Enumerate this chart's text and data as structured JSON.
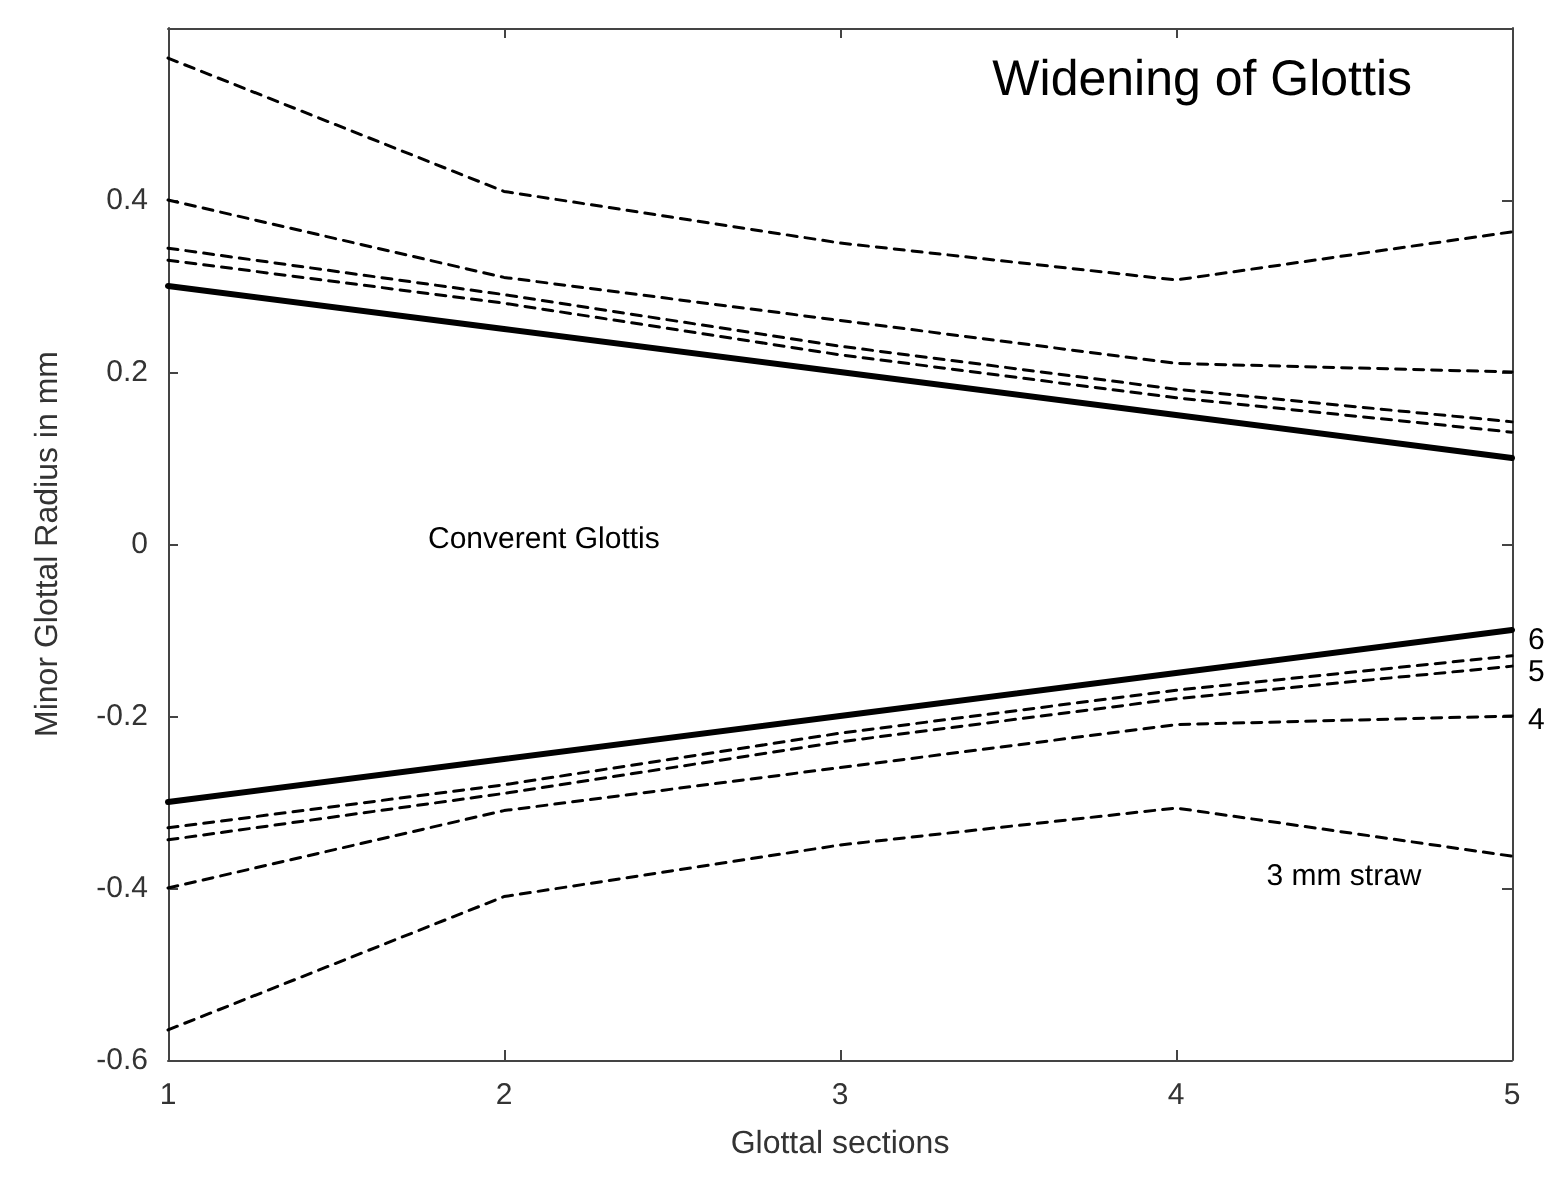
{
  "chart_data": {
    "type": "line",
    "title": "Widening of Glottis",
    "xlabel": "Glottal sections",
    "ylabel": "Minor Glottal Radius in mm",
    "x": [
      1,
      2,
      3,
      4,
      5
    ],
    "xlim": [
      1,
      5
    ],
    "xticks": [
      1,
      2,
      3,
      4,
      5
    ],
    "ylim": [
      -0.6,
      0.6
    ],
    "yticks": [
      -0.6,
      -0.4,
      -0.2,
      0,
      0.2,
      0.4
    ],
    "grid": false,
    "marker": "none",
    "series": [
      {
        "color": "#000000",
        "line_style": "solid",
        "values": [
          0.3,
          0.25,
          0.2,
          0.15,
          0.1
        ]
      },
      {
        "color": "#000000",
        "line_style": "dashed",
        "values": [
          0.565,
          0.41,
          0.35,
          0.307,
          0.363
        ]
      },
      {
        "color": "#000000",
        "line_style": "dashed",
        "values": [
          0.4,
          0.31,
          0.26,
          0.21,
          0.2
        ]
      },
      {
        "color": "#000000",
        "line_style": "dashed",
        "values": [
          0.344,
          0.29,
          0.23,
          0.18,
          0.142
        ]
      },
      {
        "color": "#000000",
        "line_style": "dashed",
        "values": [
          0.33,
          0.28,
          0.22,
          0.17,
          0.13
        ]
      },
      {
        "color": "#000000",
        "line_style": "solid",
        "values": [
          -0.3,
          -0.25,
          -0.2,
          -0.15,
          -0.1
        ]
      },
      {
        "name": "3 mm straw",
        "color": "#000000",
        "line_style": "dashed",
        "values": [
          -0.565,
          -0.41,
          -0.35,
          -0.307,
          -0.363
        ]
      },
      {
        "name": "4",
        "color": "#000000",
        "line_style": "dashed",
        "values": [
          -0.4,
          -0.31,
          -0.26,
          -0.21,
          -0.2
        ]
      },
      {
        "name": "5",
        "color": "#000000",
        "line_style": "dashed",
        "values": [
          -0.344,
          -0.29,
          -0.23,
          -0.18,
          -0.142
        ]
      },
      {
        "name": "6",
        "color": "#000000",
        "line_style": "dashed",
        "values": [
          -0.33,
          -0.28,
          -0.22,
          -0.17,
          -0.13
        ]
      }
    ],
    "annotations": [
      "Converent Glottis"
    ]
  }
}
